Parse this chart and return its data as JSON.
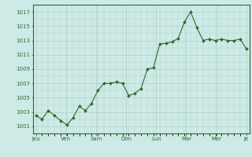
{
  "x_labels": [
    "Jeu",
    "Ven",
    "Sam",
    "Dim",
    "Lun",
    "Mar",
    "Mer",
    "Je"
  ],
  "y_values": [
    1002.5,
    1002.0,
    1003.2,
    1002.5,
    1001.8,
    1001.2,
    1002.2,
    1003.8,
    1003.2,
    1004.2,
    1006.0,
    1007.0,
    1007.0,
    1007.2,
    1007.0,
    1005.3,
    1005.6,
    1006.3,
    1009.0,
    1009.2,
    1012.5,
    1012.6,
    1012.8,
    1013.3,
    1015.6,
    1017.0,
    1014.8,
    1013.0,
    1013.2,
    1013.0,
    1013.2,
    1013.0,
    1013.0,
    1013.2,
    1011.8
  ],
  "line_color": "#2d6a2d",
  "marker_color": "#2d6a2d",
  "bg_color": "#cdeae6",
  "grid_color": "#b0ceca",
  "tick_label_color": "#2d6a2d",
  "ylim_min": 1000,
  "ylim_max": 1018,
  "yticks": [
    1001,
    1003,
    1005,
    1007,
    1009,
    1011,
    1013,
    1015,
    1017
  ],
  "border_color": "#2d6a2d",
  "num_days": 7
}
